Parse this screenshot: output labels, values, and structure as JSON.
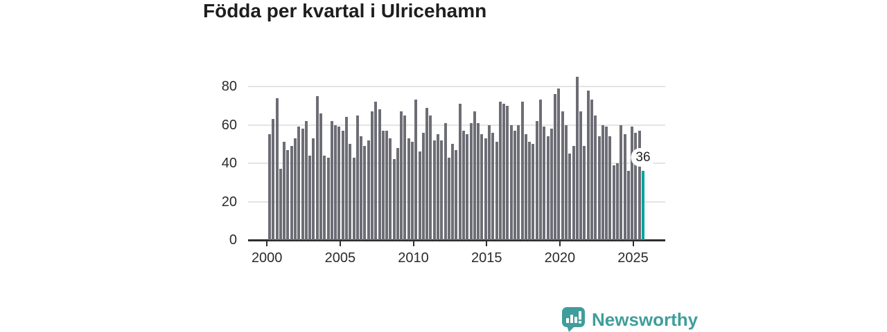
{
  "page": {
    "title": "Födda per kvartal i Ulricehamn"
  },
  "brand": {
    "name": "Newsworthy"
  },
  "chart_data": {
    "type": "bar",
    "title": "Födda per kvartal i Ulricehamn",
    "xlabel": "",
    "ylabel": "",
    "period": "quarterly",
    "first_quarter": "2000 Q1",
    "last_quarter": "2025 Q3",
    "y_ticks": [
      0,
      20,
      40,
      60,
      80
    ],
    "x_ticks": [
      2000,
      2005,
      2010,
      2015,
      2020,
      2025
    ],
    "ylim": [
      0,
      88
    ],
    "grid": "horizontal",
    "legend": "none",
    "series_by_year": {
      "2000": [
        55,
        63,
        74,
        37
      ],
      "2001": [
        51,
        47,
        49,
        53
      ],
      "2002": [
        59,
        58,
        62,
        44
      ],
      "2003": [
        53,
        75,
        66,
        44
      ],
      "2004": [
        43,
        62,
        60,
        59
      ],
      "2005": [
        57,
        64,
        50,
        43
      ],
      "2006": [
        65,
        54,
        49,
        52
      ],
      "2007": [
        67,
        72,
        68,
        57
      ],
      "2008": [
        57,
        53,
        42,
        48
      ],
      "2009": [
        67,
        65,
        53,
        51
      ],
      "2010": [
        73,
        46,
        56,
        69
      ],
      "2011": [
        65,
        52,
        55,
        52
      ],
      "2012": [
        61,
        43,
        50,
        47
      ],
      "2013": [
        71,
        57,
        55,
        61
      ],
      "2014": [
        67,
        61,
        55,
        53
      ],
      "2015": [
        60,
        56,
        51,
        72
      ],
      "2016": [
        71,
        70,
        60,
        57
      ],
      "2017": [
        60,
        72,
        55,
        51
      ],
      "2018": [
        50,
        62,
        73,
        59
      ],
      "2019": [
        54,
        58,
        76,
        79
      ],
      "2020": [
        67,
        60,
        45,
        49
      ],
      "2021": [
        85,
        67,
        49,
        78
      ],
      "2022": [
        73,
        65,
        54,
        60
      ],
      "2023": [
        59,
        54,
        39,
        40
      ],
      "2024": [
        60,
        55,
        36,
        59
      ],
      "2025": [
        56,
        57,
        36
      ]
    },
    "highlight": {
      "quarter": "2025 Q3",
      "value": 36,
      "label": "36"
    },
    "colors": {
      "bar": "#6d6d76",
      "highlight_bar": "#00A49C",
      "gridline": "#e4e4e4",
      "axis": "#2d2d2d",
      "brand_teal": "#3f9e9b"
    }
  }
}
